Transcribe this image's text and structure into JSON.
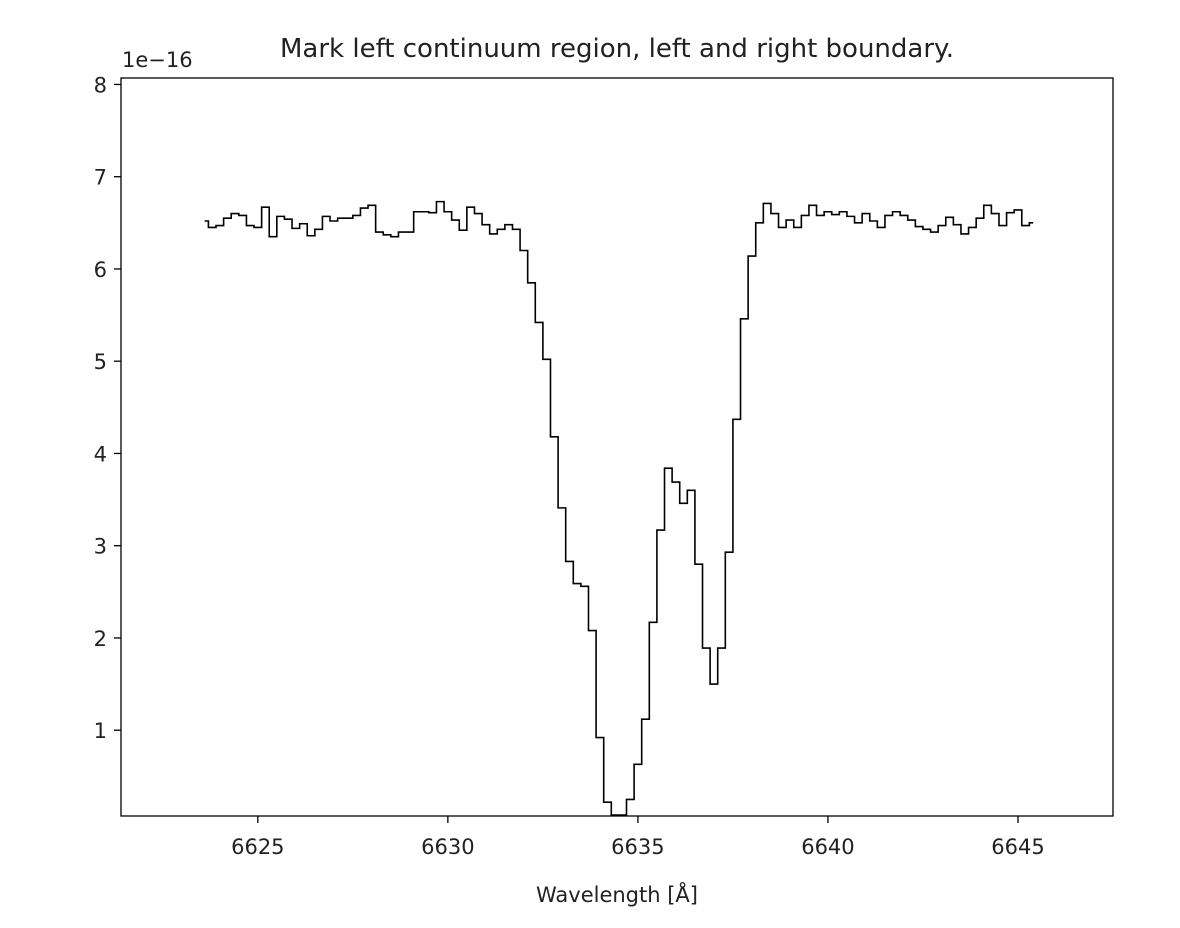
{
  "chart_data": {
    "type": "line",
    "drawstyle": "steps-mid",
    "title": "Mark left continuum region, left and right boundary.",
    "xlabel": "Wavelength  [Å]",
    "ylabel": "",
    "y_offset_label": "1e−16",
    "xlim": [
      6621.4,
      6647.5
    ],
    "ylim": [
      0.07,
      8.07
    ],
    "grid": false,
    "x_ticks": [
      6625,
      6630,
      6635,
      6640,
      6645
    ],
    "y_ticks": [
      1,
      2,
      3,
      4,
      5,
      6,
      7,
      8
    ],
    "line_color": "#000000",
    "series": [
      {
        "x": [
          6623.6,
          6623.8,
          6624.0,
          6624.2,
          6624.4,
          6624.6,
          6624.8,
          6625.0,
          6625.2,
          6625.4,
          6625.6,
          6625.8,
          6626.0,
          6626.2,
          6626.4,
          6626.6,
          6626.8,
          6627.0,
          6627.2,
          6627.4,
          6627.6,
          6627.8,
          6628.0,
          6628.2,
          6628.4,
          6628.6,
          6628.8,
          6629.0,
          6629.2,
          6629.4,
          6629.6,
          6629.8,
          6630.0,
          6630.2,
          6630.4,
          6630.6,
          6630.8,
          6631.0,
          6631.2,
          6631.4,
          6631.6,
          6631.8,
          6632.0,
          6632.2,
          6632.4,
          6632.6,
          6632.8,
          6633.0,
          6633.2,
          6633.4,
          6633.6,
          6633.8,
          6634.0,
          6634.2,
          6634.4,
          6634.6,
          6634.8,
          6635.0,
          6635.2,
          6635.4,
          6635.6,
          6635.8,
          6636.0,
          6636.2,
          6636.4,
          6636.6,
          6636.8,
          6637.0,
          6637.2,
          6637.4,
          6637.6,
          6637.8,
          6638.0,
          6638.2,
          6638.4,
          6638.6,
          6638.8,
          6639.0,
          6639.2,
          6639.4,
          6639.6,
          6639.8,
          6640.0,
          6640.2,
          6640.4,
          6640.6,
          6640.8,
          6641.0,
          6641.2,
          6641.4,
          6641.6,
          6641.8,
          6642.0,
          6642.2,
          6642.4,
          6642.6,
          6642.8,
          6643.0,
          6643.2,
          6643.4,
          6643.6,
          6643.8,
          6644.0,
          6644.2,
          6644.4,
          6644.6,
          6644.8,
          6645.0,
          6645.2,
          6645.4
        ],
        "y": [
          6.52,
          6.45,
          6.47,
          6.55,
          6.6,
          6.58,
          6.47,
          6.45,
          6.67,
          6.35,
          6.57,
          6.54,
          6.44,
          6.49,
          6.36,
          6.43,
          6.57,
          6.52,
          6.55,
          6.55,
          6.58,
          6.66,
          6.69,
          6.4,
          6.37,
          6.35,
          6.4,
          6.4,
          6.62,
          6.62,
          6.61,
          6.73,
          6.62,
          6.53,
          6.42,
          6.67,
          6.6,
          6.48,
          6.38,
          6.43,
          6.48,
          6.43,
          6.2,
          5.85,
          5.42,
          5.02,
          4.18,
          3.41,
          2.83,
          2.59,
          2.56,
          2.08,
          0.92,
          0.22,
          0.08,
          0.08,
          0.25,
          0.63,
          1.12,
          2.17,
          3.17,
          3.84,
          3.69,
          3.46,
          3.6,
          2.8,
          1.89,
          1.5,
          1.89,
          2.93,
          4.37,
          5.46,
          6.14,
          6.5,
          6.71,
          6.6,
          6.45,
          6.53,
          6.45,
          6.58,
          6.69,
          6.58,
          6.62,
          6.59,
          6.62,
          6.57,
          6.5,
          6.6,
          6.52,
          6.45,
          6.58,
          6.62,
          6.58,
          6.53,
          6.46,
          6.43,
          6.4,
          6.47,
          6.56,
          6.48,
          6.38,
          6.45,
          6.55,
          6.69,
          6.6,
          6.47,
          6.61,
          6.64,
          6.47,
          6.5
        ]
      }
    ]
  }
}
